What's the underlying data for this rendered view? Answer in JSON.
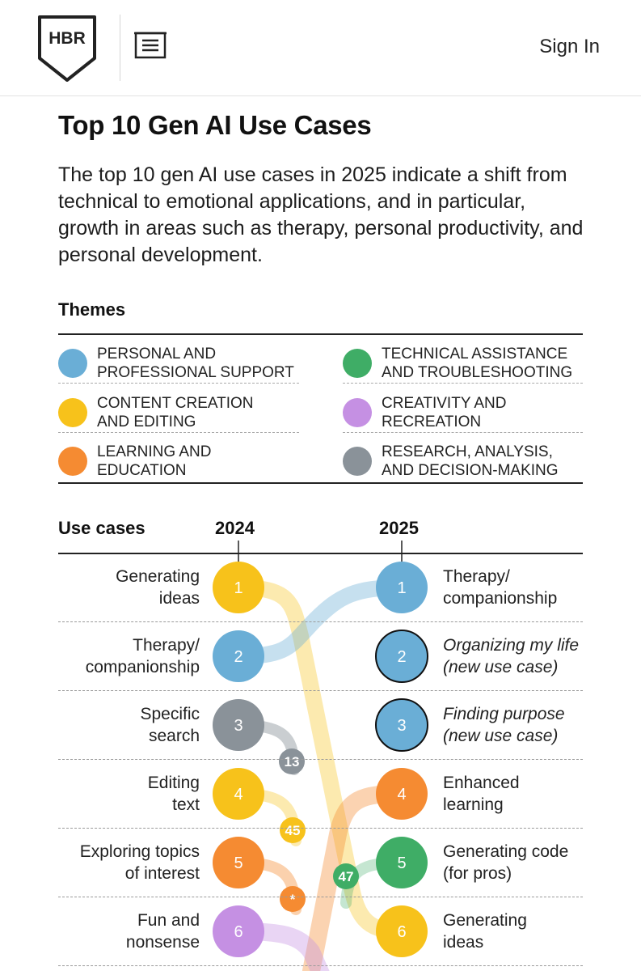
{
  "header": {
    "logo_text": "HBR",
    "menu_icon": "hamburger-menu-icon",
    "sign_in": "Sign In"
  },
  "article": {
    "title": "Top 10 Gen AI Use Cases",
    "description": "The top 10 gen AI use cases in 2025 indicate a shift from technical to emotional applications, and in particular, growth in areas such as therapy, personal productivity, and personal development."
  },
  "themes": {
    "title": "Themes",
    "items": [
      {
        "label": "PERSONAL AND\nPROFESSIONAL SUPPORT",
        "color": "#6aaed6"
      },
      {
        "label": "TECHNICAL ASSISTANCE\nAND TROUBLESHOOTING",
        "color": "#3fad66"
      },
      {
        "label": "CONTENT CREATION\nAND EDITING",
        "color": "#f7c21b"
      },
      {
        "label": "CREATIVITY AND\nRECREATION",
        "color": "#c590e3"
      },
      {
        "label": "LEARNING AND\nEDUCATION",
        "color": "#f58b32"
      },
      {
        "label": "RESEARCH, ANALYSIS,\nAND DECISION-MAKING",
        "color": "#8a9299"
      }
    ]
  },
  "chart_data": {
    "type": "table",
    "title": "Top 10 Gen AI Use Cases",
    "headers": {
      "use_cases": "Use cases",
      "year_left": "2024",
      "year_right": "2025"
    },
    "colors": {
      "personal": "#6aaed6",
      "technical": "#3fad66",
      "content": "#f7c21b",
      "creativity": "#c590e3",
      "learning": "#f58b32",
      "research": "#8a9299"
    },
    "rank_2024": [
      {
        "rank": 1,
        "label": "Generating\nideas",
        "theme": "content",
        "rank_2025": 6,
        "badge": ""
      },
      {
        "rank": 2,
        "label": "Therapy/\ncompanionship",
        "theme": "personal",
        "rank_2025": 1,
        "badge": ""
      },
      {
        "rank": 3,
        "label": "Specific\nsearch",
        "theme": "research",
        "rank_2025": 13,
        "badge": "13"
      },
      {
        "rank": 4,
        "label": "Editing\ntext",
        "theme": "content",
        "rank_2025": 45,
        "badge": "45"
      },
      {
        "rank": 5,
        "label": "Exploring topics\nof interest",
        "theme": "learning",
        "rank_2025": null,
        "badge": "*"
      },
      {
        "rank": 6,
        "label": "Fun and\nnonsense",
        "theme": "creativity",
        "rank_2025": null,
        "badge": ""
      }
    ],
    "rank_2025": [
      {
        "rank": 1,
        "label": "Therapy/\ncompanionship",
        "theme": "personal",
        "new": false,
        "rank_2024": 2,
        "badge": ""
      },
      {
        "rank": 2,
        "label": "Organizing my life\n(new use case)",
        "theme": "personal",
        "new": true,
        "rank_2024": null,
        "badge": ""
      },
      {
        "rank": 3,
        "label": "Finding purpose\n(new use case)",
        "theme": "personal",
        "new": true,
        "rank_2024": null,
        "badge": ""
      },
      {
        "rank": 4,
        "label": "Enhanced\nlearning",
        "theme": "learning",
        "new": false,
        "rank_2024": null,
        "badge": ""
      },
      {
        "rank": 5,
        "label": "Generating code\n(for pros)",
        "theme": "technical",
        "new": false,
        "rank_2024": 47,
        "badge": "47"
      },
      {
        "rank": 6,
        "label": "Generating\nideas",
        "theme": "content",
        "new": false,
        "rank_2024": 1,
        "badge": ""
      }
    ]
  }
}
